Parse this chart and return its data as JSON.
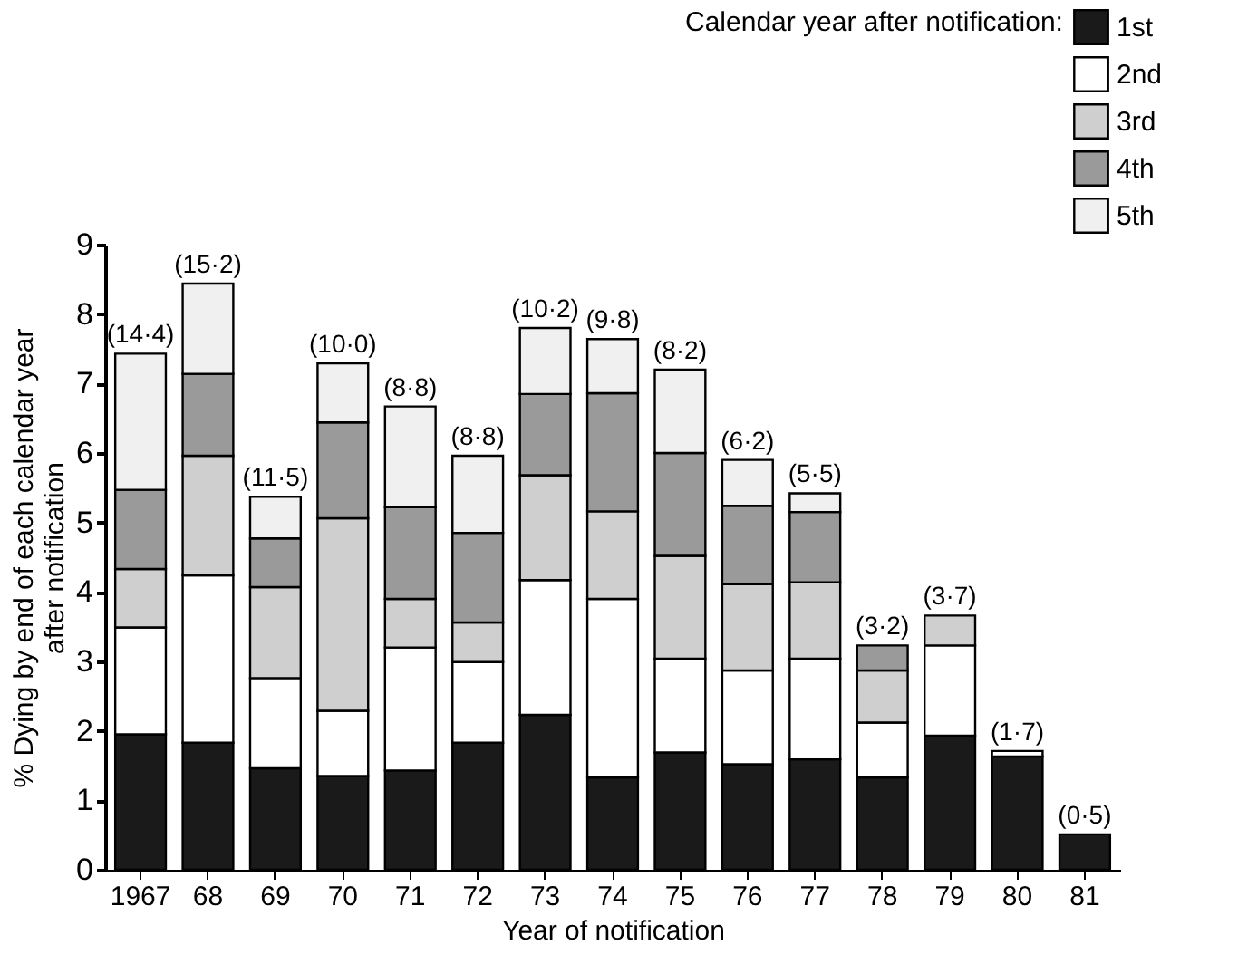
{
  "chart_data": {
    "type": "bar",
    "stacked": true,
    "xlabel": "Year of notification",
    "ylabel": "% Dying by end of each calendar year after notification",
    "legend_title": "Calendar year after notification:",
    "legend": "top right",
    "grid": false,
    "categories": [
      "1967",
      "68",
      "69",
      "70",
      "71",
      "72",
      "73",
      "74",
      "75",
      "76",
      "77",
      "78",
      "79",
      "80",
      "81"
    ],
    "ylim": [
      0,
      9
    ],
    "yticks": [
      0,
      1,
      2,
      3,
      4,
      5,
      6,
      7,
      8,
      9
    ],
    "series": [
      {
        "name": "1st",
        "color": "#1a1a1a",
        "values": [
          1.95,
          1.83,
          1.46,
          1.35,
          1.43,
          1.83,
          2.23,
          1.33,
          1.69,
          1.52,
          1.59,
          1.33,
          1.93,
          1.63,
          0.51
        ]
      },
      {
        "name": "2nd",
        "color": "#ffffff",
        "values": [
          1.54,
          2.41,
          1.3,
          0.94,
          1.77,
          1.16,
          1.94,
          2.57,
          1.35,
          1.35,
          1.45,
          0.79,
          1.3,
          0.08,
          null
        ]
      },
      {
        "name": "3rd",
        "color": "#cfcfcf",
        "values": [
          0.84,
          1.72,
          1.31,
          2.77,
          0.7,
          0.57,
          1.51,
          1.26,
          1.48,
          1.24,
          1.1,
          0.75,
          0.43,
          null,
          null
        ]
      },
      {
        "name": "4th",
        "color": "#9a9a9a",
        "values": [
          1.14,
          1.18,
          0.7,
          1.38,
          1.32,
          1.29,
          1.17,
          1.7,
          1.48,
          1.13,
          1.01,
          0.36,
          null,
          null,
          null
        ]
      },
      {
        "name": "5th",
        "color": "#f0f0f0",
        "values": [
          1.96,
          1.3,
          0.6,
          0.85,
          1.45,
          1.11,
          0.95,
          0.78,
          1.2,
          0.66,
          0.27,
          null,
          null,
          null,
          null
        ]
      }
    ],
    "totals": [
      "(14·4)",
      "(15·2)",
      "(11·5)",
      "(10·0)",
      "(8·8)",
      "(8·8)",
      "(10·2)",
      "(9·8)",
      "(8·2)",
      "(6·2)",
      "(5·5)",
      "(3·2)",
      "(3·7)",
      "(1·7)",
      "(0·5)"
    ]
  }
}
